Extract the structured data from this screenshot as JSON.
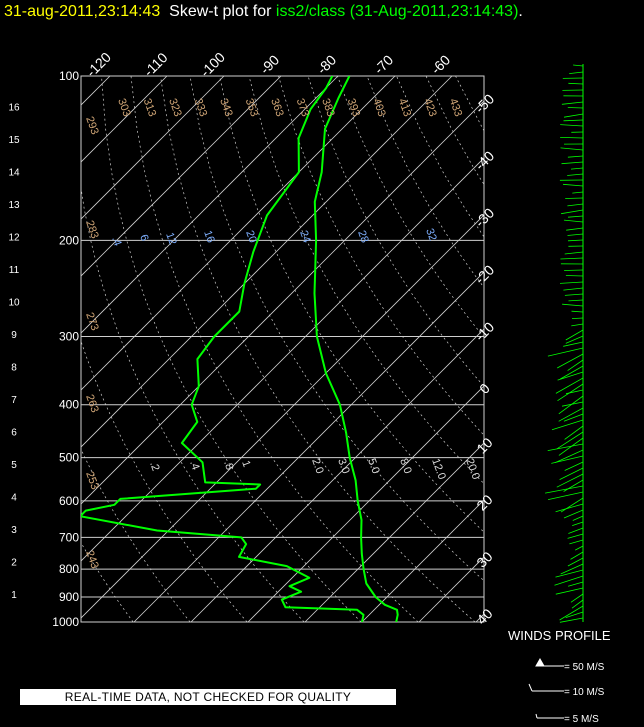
{
  "header": {
    "timestamp": "31-aug-2011,23:14:43",
    "mid": "Skew-t plot for",
    "source": "iss2/class (31-Aug-2011,23:14:43)",
    "end": "."
  },
  "footer": {
    "quality_note": "REAL-TIME DATA, NOT CHECKED FOR QUALITY",
    "winds_title": "WINDS PROFILE",
    "barb_50": "= 50 M/S",
    "barb_10": "= 10 M/S",
    "barb_5": "= 5 M/S"
  },
  "colors": {
    "background": "#000000",
    "temperature": "#00ff00",
    "grid": "#cfcfcf",
    "dry_adiabat_label": "#d2a777",
    "mixing_ratio_label": "#7fb0ff",
    "quality_banner": "#ffffff"
  },
  "chart_data": {
    "type": "line",
    "pressure_ticks": [
      "100",
      "200",
      "300",
      "400",
      "500",
      "600",
      "700",
      "800",
      "900",
      "1000"
    ],
    "height_ticks": [
      "1",
      "2",
      "3",
      "4",
      "5",
      "6",
      "7",
      "8",
      "9",
      "10",
      "11",
      "12",
      "13",
      "14",
      "15",
      "16"
    ],
    "skewed_temp_ticks": [
      "-120",
      "-110",
      "-100",
      "-90",
      "-80",
      "-70",
      "-60",
      "-50",
      "-40",
      "-30",
      "-20",
      "-10",
      "0",
      "10",
      "20",
      "30",
      "40"
    ],
    "dry_adiabat_labels": [
      "303",
      "313",
      "323",
      "333",
      "343",
      "353",
      "363",
      "373",
      "383",
      "393",
      "403",
      "413",
      "423",
      "433",
      "293",
      "283",
      "273",
      "263",
      "253",
      "243"
    ],
    "mixing_ratio_labels_upper": [
      ".4",
      "6",
      "12",
      "16",
      "20",
      "24",
      "28",
      "32"
    ],
    "mixing_ratio_labels_lower": [
      ".2",
      ".4",
      ".8",
      "1",
      "2.0",
      "3.0",
      "5.0",
      "8.0",
      "12.0",
      "20.0"
    ],
    "series": [
      {
        "values": [
          [
            1000,
            26
          ],
          [
            970,
            25
          ],
          [
            950,
            24
          ],
          [
            930,
            21
          ],
          [
            900,
            18
          ],
          [
            850,
            14
          ],
          [
            800,
            11
          ],
          [
            750,
            8
          ],
          [
            700,
            5
          ],
          [
            650,
            2
          ],
          [
            600,
            -2
          ],
          [
            550,
            -6
          ],
          [
            500,
            -11
          ],
          [
            450,
            -16
          ],
          [
            400,
            -22
          ],
          [
            350,
            -30
          ],
          [
            300,
            -38
          ],
          [
            250,
            -46
          ],
          [
            200,
            -55
          ],
          [
            170,
            -62
          ],
          [
            150,
            -66
          ],
          [
            125,
            -73
          ],
          [
            110,
            -76
          ],
          [
            100,
            -78
          ]
        ]
      },
      {
        "values": [
          [
            1000,
            20
          ],
          [
            970,
            19
          ],
          [
            950,
            17
          ],
          [
            940,
            4
          ],
          [
            910,
            2
          ],
          [
            880,
            4
          ],
          [
            860,
            1
          ],
          [
            830,
            3
          ],
          [
            790,
            -3
          ],
          [
            760,
            -13
          ],
          [
            720,
            -14
          ],
          [
            700,
            -16
          ],
          [
            680,
            -32
          ],
          [
            640,
            -48
          ],
          [
            625,
            -48
          ],
          [
            610,
            -44
          ],
          [
            595,
            -44
          ],
          [
            570,
            -22
          ],
          [
            560,
            -22
          ],
          [
            555,
            -32
          ],
          [
            510,
            -36
          ],
          [
            470,
            -43
          ],
          [
            430,
            -44
          ],
          [
            400,
            -48
          ],
          [
            370,
            -50
          ],
          [
            330,
            -55
          ],
          [
            300,
            -56
          ],
          [
            270,
            -56
          ],
          [
            240,
            -60
          ],
          [
            210,
            -64
          ],
          [
            180,
            -68
          ],
          [
            150,
            -70
          ],
          [
            130,
            -76
          ],
          [
            115,
            -79
          ],
          [
            105,
            -80
          ],
          [
            100,
            -81
          ]
        ]
      }
    ]
  }
}
